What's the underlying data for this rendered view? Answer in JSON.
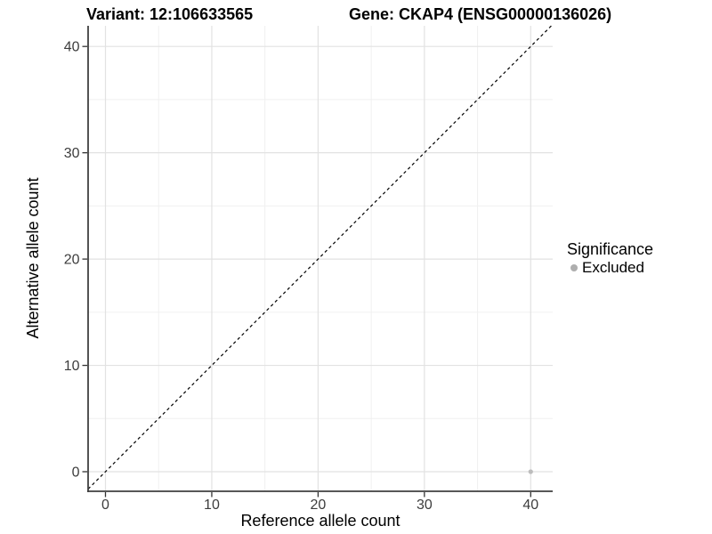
{
  "figure": {
    "title_left": "Variant: 12:106633565",
    "title_right": "Gene: CKAP4 (ENSG00000136026)"
  },
  "chart_data": {
    "type": "scatter",
    "xlabel": "Reference allele count",
    "ylabel": "Alternative allele count",
    "x_ticks": [
      0,
      10,
      20,
      30,
      40
    ],
    "y_ticks": [
      0,
      10,
      20,
      30,
      40
    ],
    "x_minor_ticks": [
      5,
      15,
      25,
      35
    ],
    "y_minor_ticks": [
      5,
      15,
      25,
      35
    ],
    "xlim": [
      -1.8,
      42
    ],
    "ylim": [
      -1.8,
      42
    ],
    "grid": "major+minor",
    "reference_line": {
      "type": "identity",
      "equation": "y = x",
      "style": "dashed",
      "color": "#111111"
    },
    "series": [
      {
        "name": "Excluded",
        "color": "#bdbdbd",
        "points": [
          {
            "x": 40,
            "y": 0
          }
        ]
      }
    ],
    "legend": {
      "title": "Significance",
      "position": "right",
      "items": [
        {
          "label": "Excluded",
          "color": "#aeaeae"
        }
      ]
    },
    "colors": {
      "background": "#ffffff",
      "grid_major": "#e2e2e2",
      "grid_minor": "#f0f0f0",
      "axis_line": "#404040",
      "tick_label": "#3d3d3d"
    }
  }
}
